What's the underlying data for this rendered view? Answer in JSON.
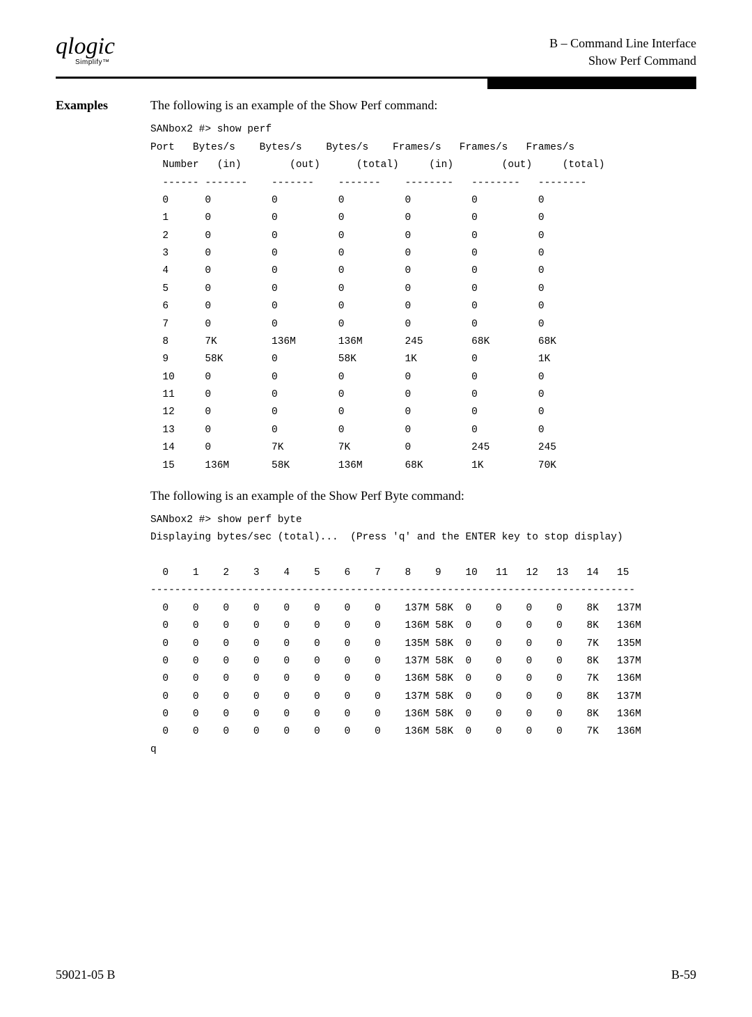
{
  "header": {
    "logo_text": "qlogic",
    "logo_sub": "Simplify™",
    "right_line1": "B – Command Line Interface",
    "right_line2": "Show Perf Command"
  },
  "section": {
    "label": "Examples",
    "intro1": "The following is an example of the Show Perf command:",
    "intro2": "The following is an example of the Show Perf Byte command:"
  },
  "perf_block": "SANbox2 #> show perf\nPort   Bytes/s    Bytes/s    Bytes/s    Frames/s   Frames/s   Frames/s\n  Number   (in)        (out)      (total)     (in)        (out)     (total)\n  ------ -------    -------    -------    --------   --------   --------\n  0      0          0          0          0          0          0\n  1      0          0          0          0          0          0\n  2      0          0          0          0          0          0\n  3      0          0          0          0          0          0\n  4      0          0          0          0          0          0\n  5      0          0          0          0          0          0\n  6      0          0          0          0          0          0\n  7      0          0          0          0          0          0\n  8      7K         136M       136M       245        68K        68K\n  9      58K        0          58K        1K         0          1K\n  10     0          0          0          0          0          0\n  11     0          0          0          0          0          0\n  12     0          0          0          0          0          0\n  13     0          0          0          0          0          0\n  14     0          7K         7K         0          245        245\n  15     136M       58K        136M       68K        1K         70K",
  "byte_block": "SANbox2 #> show perf byte\nDisplaying bytes/sec (total)...  (Press 'q' and the ENTER key to stop display)\n\n  0    1    2    3    4    5    6    7    8    9    10   11   12   13   14   15\n--------------------------------------------------------------------------------\n  0    0    0    0    0    0    0    0    137M 58K  0    0    0    0    8K   137M\n  0    0    0    0    0    0    0    0    136M 58K  0    0    0    0    8K   136M\n  0    0    0    0    0    0    0    0    135M 58K  0    0    0    0    7K   135M\n  0    0    0    0    0    0    0    0    137M 58K  0    0    0    0    8K   137M\n  0    0    0    0    0    0    0    0    136M 58K  0    0    0    0    7K   136M\n  0    0    0    0    0    0    0    0    137M 58K  0    0    0    0    8K   137M\n  0    0    0    0    0    0    0    0    136M 58K  0    0    0    0    8K   136M\n  0    0    0    0    0    0    0    0    136M 58K  0    0    0    0    7K   136M\nq",
  "footer": {
    "left": "59021-05  B",
    "right": "B-59"
  }
}
